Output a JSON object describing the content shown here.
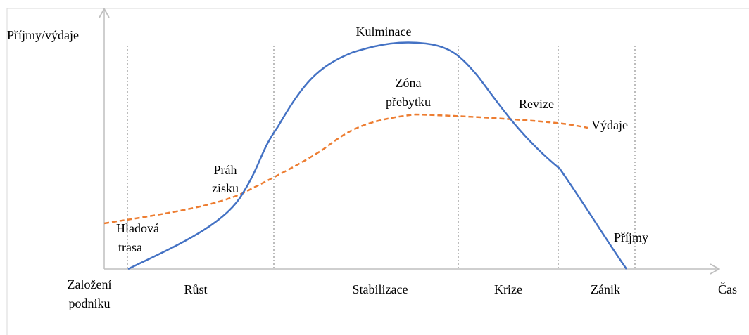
{
  "diagram": {
    "y_axis_label": "Příjmy/výdaje",
    "x_axis_label": "Čas",
    "start_label": [
      "Založení",
      "podniku"
    ],
    "phases": [
      "Růst",
      "Stabilizace",
      "Krize",
      "Zánik"
    ],
    "annotations": {
      "peak": "Kulminace",
      "surplus": [
        "Zóna",
        "přebytku"
      ],
      "revision": "Revize",
      "break_even": [
        "Práh",
        "zisku"
      ],
      "hunger": [
        "Hladová",
        "trasa"
      ]
    },
    "curves": {
      "expenses": "Výdaje",
      "revenue": "Příjmy"
    }
  }
}
